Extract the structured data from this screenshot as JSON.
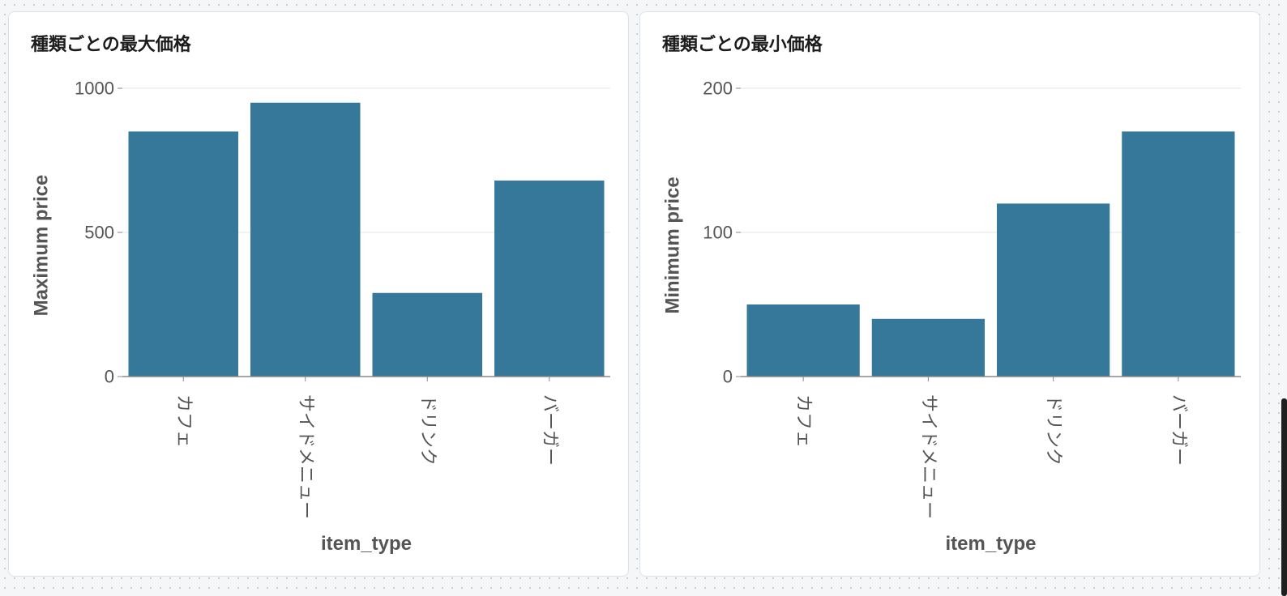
{
  "panels": [
    {
      "title": "種類ごとの最大価格"
    },
    {
      "title": "種類ごとの最小価格"
    }
  ],
  "colors": {
    "bar": "#367899",
    "grid": "#e3e6ea",
    "axis": "#888888",
    "tick_text": "#555555",
    "axis_title": "#555555"
  },
  "chart_data": [
    {
      "type": "bar",
      "title": "種類ごとの最大価格",
      "categories": [
        "カフェ",
        "サイドメニュー",
        "ドリンク",
        "バーガー"
      ],
      "values": [
        850,
        950,
        290,
        680
      ],
      "xlabel": "item_type",
      "ylabel": "Maximum price",
      "ylim": [
        0,
        1000
      ],
      "yticks": [
        0,
        500,
        1000
      ],
      "grid": true,
      "legend": "none"
    },
    {
      "type": "bar",
      "title": "種類ごとの最小価格",
      "categories": [
        "カフェ",
        "サイドメニュー",
        "ドリンク",
        "バーガー"
      ],
      "values": [
        50,
        40,
        120,
        170
      ],
      "xlabel": "item_type",
      "ylabel": "Minimum price",
      "ylim": [
        0,
        200
      ],
      "yticks": [
        0,
        100,
        200
      ],
      "grid": true,
      "legend": "none"
    }
  ]
}
